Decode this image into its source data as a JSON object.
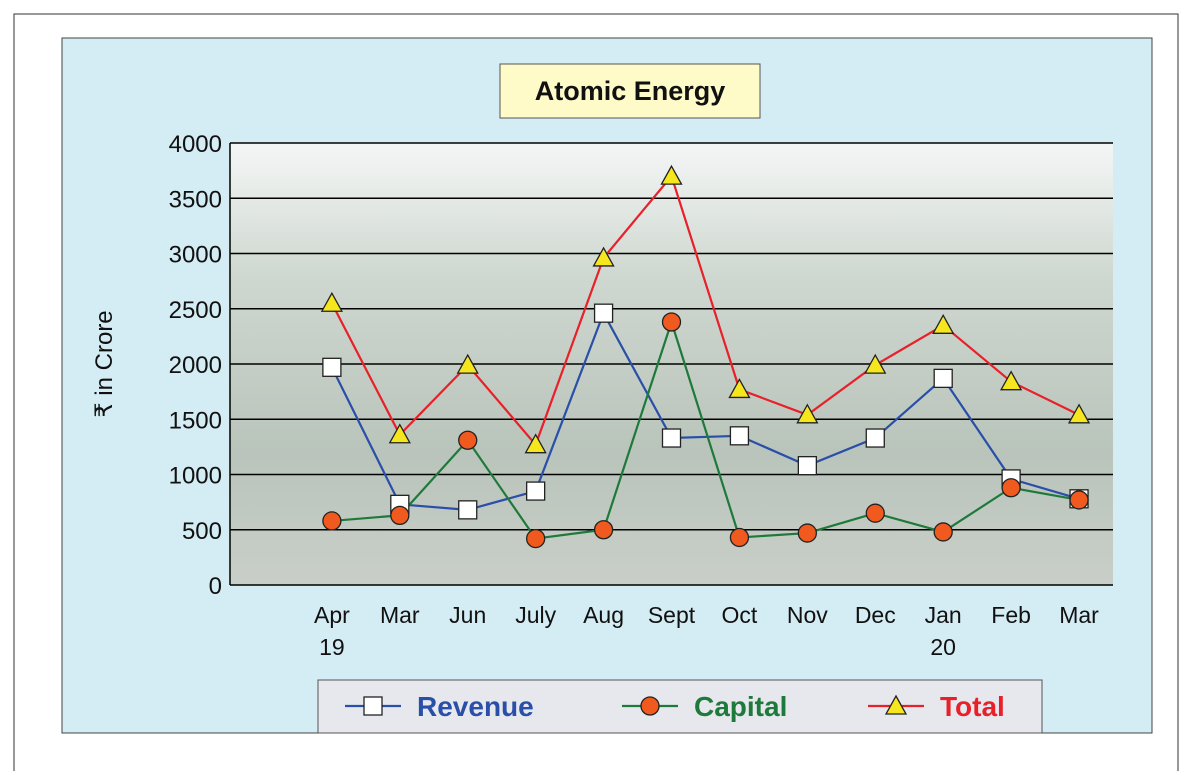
{
  "chart_data": {
    "type": "line",
    "title": "Atomic Energy",
    "y_label": "₹ in Crore",
    "categories": [
      "Apr 19",
      "Mar",
      "Jun",
      "July",
      "Aug",
      "Sept",
      "Oct",
      "Nov",
      "Dec",
      "Jan 20",
      "Feb",
      "Mar"
    ],
    "series": [
      {
        "name": "Revenue",
        "color": "#2a4fa8",
        "marker": "square",
        "marker_fill": "#ffffff",
        "values": [
          1970,
          730,
          680,
          850,
          2460,
          1330,
          1350,
          1080,
          1330,
          1870,
          960,
          780
        ]
      },
      {
        "name": "Capital",
        "color": "#1e7a3a",
        "marker": "circle",
        "marker_fill": "#f05a1e",
        "values": [
          580,
          630,
          1310,
          420,
          500,
          2380,
          430,
          470,
          650,
          480,
          880,
          770
        ]
      },
      {
        "name": "Total",
        "color": "#e8202a",
        "marker": "triangle",
        "marker_fill": "#f5e61e",
        "values": [
          2550,
          1360,
          1990,
          1270,
          2960,
          3700,
          1770,
          1540,
          1990,
          2350,
          1840,
          1540
        ]
      }
    ],
    "ylim": [
      0,
      4000
    ],
    "yticks": [
      0,
      500,
      1000,
      1500,
      2000,
      2500,
      3000,
      3500,
      4000
    ],
    "grid": true,
    "legend": "bottom"
  }
}
